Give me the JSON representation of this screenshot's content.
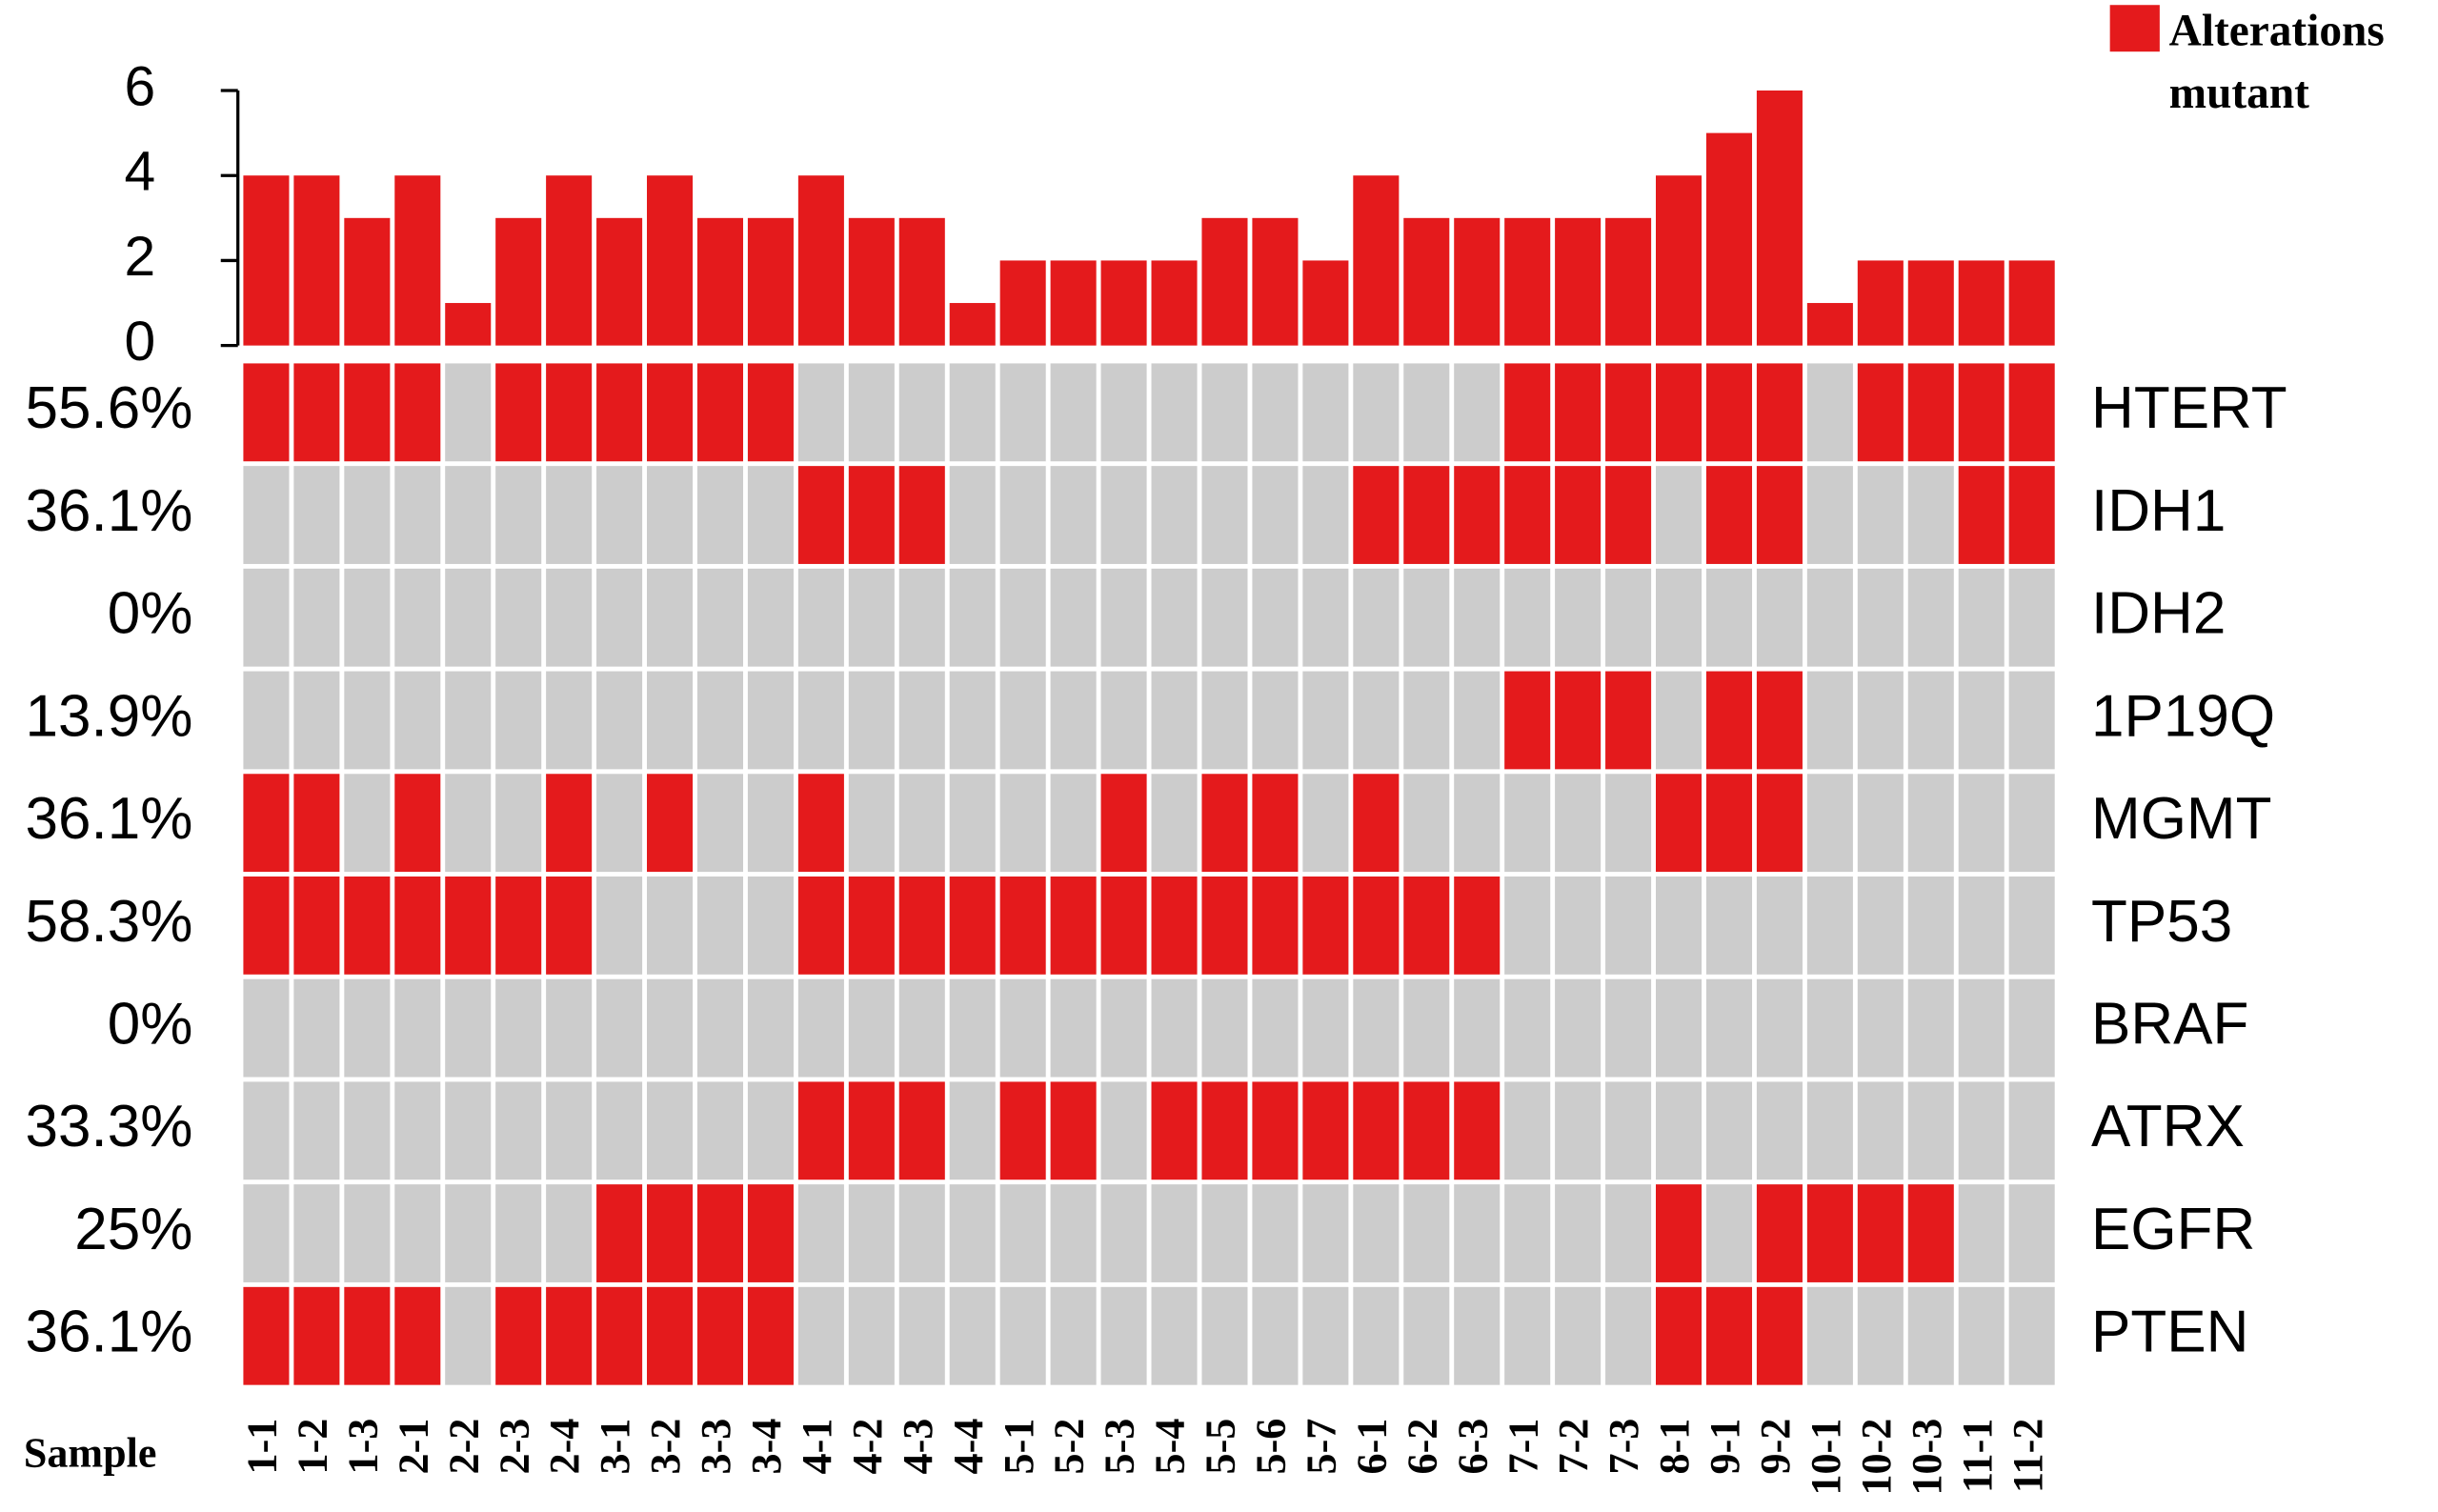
{
  "chart_data": {
    "type": "oncoprint",
    "samples_label": "Sample",
    "samples": [
      "1-1",
      "1-2",
      "1-3",
      "2-1",
      "2-2",
      "2-3",
      "2-4",
      "3-1",
      "3-2",
      "3-3",
      "3-4",
      "4-1",
      "4-2",
      "4-3",
      "4-4",
      "5-1",
      "5-2",
      "5-3",
      "5-4",
      "5-5",
      "5-6",
      "5-7",
      "6-1",
      "6-2",
      "6-3",
      "7-1",
      "7-2",
      "7-3",
      "8-1",
      "9-1",
      "9-2",
      "10-1",
      "10-2",
      "10-3",
      "11-1",
      "11-2"
    ],
    "counts": [
      4,
      4,
      3,
      4,
      1,
      3,
      4,
      3,
      4,
      3,
      3,
      4,
      3,
      3,
      1,
      2,
      2,
      2,
      2,
      3,
      3,
      2,
      4,
      3,
      3,
      3,
      3,
      3,
      4,
      5,
      6,
      1,
      2,
      2,
      2,
      2
    ],
    "ylim": [
      0,
      6
    ],
    "yticks": [
      0,
      2,
      4,
      6
    ],
    "legend": "Alterations mutant",
    "colors": {
      "mutant": "#e41a1c",
      "none": "#cccccc"
    },
    "genes": [
      {
        "name": "HTERT",
        "percent": 55.6,
        "percent_label": "55.6%",
        "values": [
          1,
          1,
          1,
          1,
          0,
          1,
          1,
          1,
          1,
          1,
          1,
          0,
          0,
          0,
          0,
          0,
          0,
          0,
          0,
          0,
          0,
          0,
          0,
          0,
          0,
          1,
          1,
          1,
          1,
          1,
          1,
          0,
          1,
          1,
          1,
          1
        ]
      },
      {
        "name": "IDH1",
        "percent": 36.1,
        "percent_label": "36.1%",
        "values": [
          0,
          0,
          0,
          0,
          0,
          0,
          0,
          0,
          0,
          0,
          0,
          1,
          1,
          1,
          0,
          0,
          0,
          0,
          0,
          0,
          0,
          0,
          1,
          1,
          1,
          1,
          1,
          1,
          0,
          1,
          1,
          0,
          0,
          0,
          1,
          1
        ]
      },
      {
        "name": "IDH2",
        "percent": 0,
        "percent_label": "0%",
        "values": [
          0,
          0,
          0,
          0,
          0,
          0,
          0,
          0,
          0,
          0,
          0,
          0,
          0,
          0,
          0,
          0,
          0,
          0,
          0,
          0,
          0,
          0,
          0,
          0,
          0,
          0,
          0,
          0,
          0,
          0,
          0,
          0,
          0,
          0,
          0,
          0
        ]
      },
      {
        "name": "1P19Q",
        "percent": 13.9,
        "percent_label": "13.9%",
        "values": [
          0,
          0,
          0,
          0,
          0,
          0,
          0,
          0,
          0,
          0,
          0,
          0,
          0,
          0,
          0,
          0,
          0,
          0,
          0,
          0,
          0,
          0,
          0,
          0,
          0,
          1,
          1,
          1,
          0,
          1,
          1,
          0,
          0,
          0,
          0,
          0
        ]
      },
      {
        "name": "MGMT",
        "percent": 36.1,
        "percent_label": "36.1%",
        "values": [
          1,
          1,
          0,
          1,
          0,
          0,
          1,
          0,
          1,
          0,
          0,
          1,
          0,
          0,
          0,
          0,
          0,
          1,
          0,
          1,
          1,
          0,
          1,
          0,
          0,
          0,
          0,
          0,
          1,
          1,
          1,
          0,
          0,
          0,
          0,
          0
        ]
      },
      {
        "name": "TP53",
        "percent": 58.3,
        "percent_label": "58.3%",
        "values": [
          1,
          1,
          1,
          1,
          1,
          1,
          1,
          0,
          0,
          0,
          0,
          1,
          1,
          1,
          1,
          1,
          1,
          1,
          1,
          1,
          1,
          1,
          1,
          1,
          1,
          0,
          0,
          0,
          0,
          0,
          0,
          0,
          0,
          0,
          0,
          0
        ]
      },
      {
        "name": "BRAF",
        "percent": 0,
        "percent_label": "0%",
        "values": [
          0,
          0,
          0,
          0,
          0,
          0,
          0,
          0,
          0,
          0,
          0,
          0,
          0,
          0,
          0,
          0,
          0,
          0,
          0,
          0,
          0,
          0,
          0,
          0,
          0,
          0,
          0,
          0,
          0,
          0,
          0,
          0,
          0,
          0,
          0,
          0
        ]
      },
      {
        "name": "ATRX",
        "percent": 33.3,
        "percent_label": "33.3%",
        "values": [
          0,
          0,
          0,
          0,
          0,
          0,
          0,
          0,
          0,
          0,
          0,
          1,
          1,
          1,
          0,
          1,
          1,
          0,
          1,
          1,
          1,
          1,
          1,
          1,
          1,
          0,
          0,
          0,
          0,
          0,
          0,
          0,
          0,
          0,
          0,
          0
        ]
      },
      {
        "name": "EGFR",
        "percent": 25,
        "percent_label": "25%",
        "values": [
          0,
          0,
          0,
          0,
          0,
          0,
          0,
          1,
          1,
          1,
          1,
          0,
          0,
          0,
          0,
          0,
          0,
          0,
          0,
          0,
          0,
          0,
          0,
          0,
          0,
          0,
          0,
          0,
          1,
          0,
          1,
          1,
          1,
          1,
          0,
          0
        ]
      },
      {
        "name": "PTEN",
        "percent": 36.1,
        "percent_label": "36.1%",
        "values": [
          1,
          1,
          1,
          1,
          0,
          1,
          1,
          1,
          1,
          1,
          1,
          0,
          0,
          0,
          0,
          0,
          0,
          0,
          0,
          0,
          0,
          0,
          0,
          0,
          0,
          0,
          0,
          0,
          1,
          1,
          1,
          0,
          0,
          0,
          0,
          0
        ]
      }
    ]
  }
}
